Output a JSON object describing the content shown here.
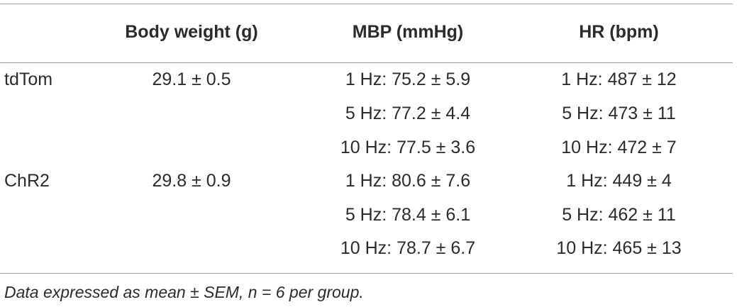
{
  "table": {
    "headers": {
      "body_weight": "Body weight (g)",
      "mbp": "MBP (mmHg)",
      "hr": "HR (bpm)"
    },
    "groups": [
      {
        "name": "tdTom",
        "body_weight": "29.1 ± 0.5",
        "mbp": [
          "1 Hz: 75.2 ± 5.9",
          "5 Hz: 77.2 ± 4.4",
          "10 Hz: 77.5 ± 3.6"
        ],
        "hr": [
          "1 Hz: 487 ± 12",
          "5 Hz: 473 ± 11",
          "10 Hz: 472 ± 7"
        ]
      },
      {
        "name": "ChR2",
        "body_weight": "29.8 ± 0.9",
        "mbp": [
          "1 Hz: 80.6 ± 7.6",
          "5 Hz: 78.4 ± 6.1",
          "10 Hz: 78.7 ± 6.7"
        ],
        "hr": [
          "1 Hz: 449 ± 4",
          "5 Hz: 462 ± 11",
          "10 Hz: 465 ± 13"
        ]
      }
    ],
    "footnote": "Data expressed as mean ± SEM, n = 6 per group."
  }
}
